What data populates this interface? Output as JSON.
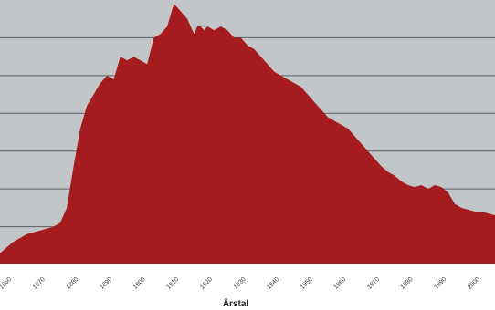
{
  "chart_data": {
    "type": "area",
    "title": "",
    "xlabel": "Årstal",
    "ylabel": "",
    "x_ticks": [
      1860,
      1870,
      1880,
      1890,
      1900,
      1910,
      1920,
      1930,
      1940,
      1950,
      1960,
      1970,
      1980,
      1990,
      2000
    ],
    "x_tick_labels": [
      "1860",
      "1870",
      "1880",
      "1890",
      "1900",
      "1910",
      "1920",
      "1930",
      "1940",
      "1950",
      "1960",
      "1970",
      "1980",
      "1990",
      "2000"
    ],
    "xlim": [
      1858,
      2006
    ],
    "ylim": [
      0,
      7
    ],
    "grid": true,
    "fill_color": "#a51c1f",
    "plot_background": "#c3c6c8",
    "x": [
      1858,
      1860,
      1862,
      1864,
      1866,
      1868,
      1870,
      1872,
      1874,
      1876,
      1878,
      1880,
      1882,
      1884,
      1886,
      1888,
      1890,
      1892,
      1894,
      1896,
      1898,
      1900,
      1902,
      1904,
      1906,
      1908,
      1910,
      1912,
      1914,
      1916,
      1917,
      1918,
      1919,
      1920,
      1922,
      1924,
      1926,
      1928,
      1930,
      1932,
      1934,
      1936,
      1938,
      1940,
      1942,
      1944,
      1946,
      1948,
      1950,
      1952,
      1954,
      1956,
      1958,
      1960,
      1962,
      1964,
      1966,
      1968,
      1970,
      1972,
      1974,
      1976,
      1978,
      1980,
      1982,
      1984,
      1986,
      1988,
      1990,
      1992,
      1994,
      1996,
      1998,
      2000,
      2002,
      2004,
      2006
    ],
    "values": [
      0.3,
      0.45,
      0.6,
      0.7,
      0.8,
      0.85,
      0.9,
      0.95,
      1.0,
      1.1,
      1.5,
      2.6,
      3.6,
      4.2,
      4.5,
      4.8,
      5.0,
      4.9,
      5.5,
      5.4,
      5.5,
      5.4,
      5.3,
      6.0,
      6.1,
      6.3,
      6.9,
      6.7,
      6.5,
      6.1,
      6.3,
      6.3,
      6.2,
      6.3,
      6.2,
      6.3,
      6.2,
      6.0,
      6.0,
      5.8,
      5.7,
      5.5,
      5.3,
      5.1,
      5.0,
      4.9,
      4.8,
      4.7,
      4.5,
      4.3,
      4.1,
      3.9,
      3.8,
      3.7,
      3.6,
      3.4,
      3.2,
      3.0,
      2.8,
      2.6,
      2.45,
      2.35,
      2.2,
      2.1,
      2.05,
      2.1,
      2.0,
      2.1,
      2.05,
      1.9,
      1.6,
      1.5,
      1.45,
      1.4,
      1.4,
      1.35,
      1.3
    ]
  }
}
